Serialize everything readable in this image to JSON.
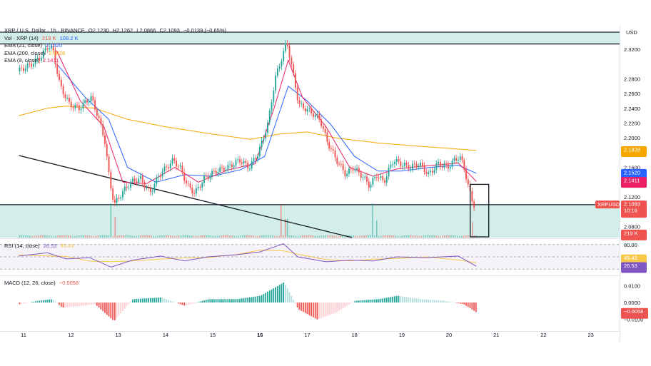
{
  "legend": {
    "symbol_line": "XRP / U.S. Dollar · 1h · BINANCE",
    "o_label": "O",
    "o": "2.1230",
    "h_label": "H",
    "h": "2.1262",
    "l_label": "L",
    "l": "2.0866",
    "c_label": "C",
    "c": "2.1093",
    "change": "−0.0139 (−0.65%)",
    "vol_label": "Vol · XRP (14)",
    "vol1": "219 K",
    "vol2": "108.2 K",
    "ema21_label": "EMA (21, close)",
    "ema21": "2.1520",
    "ema200_label": "EMA (200, close)",
    "ema200": "2.1828",
    "ema9_label": "EMA (9, close)",
    "ema9": "2.1411"
  },
  "rsi_legend": {
    "label": "RSI (14, close)",
    "v1": "26.53",
    "v2": "45.43"
  },
  "macd_legend": {
    "label": "MACD (12, 26, close)",
    "v": "−0.0058"
  },
  "colors": {
    "up": "#26a69a",
    "down": "#ef5350",
    "ema9": "#e91e63",
    "ema21": "#2962ff",
    "ema200": "#f7a600",
    "zone": "#d3ede8",
    "rsi_line": "#7e57c2",
    "rsi_ma": "#f7c948"
  },
  "chart_data": {
    "type": "candlestick",
    "price_axis": {
      "unit": "USD",
      "ticks": [
        "2.3200",
        "2.2800",
        "2.2600",
        "2.2400",
        "2.2200",
        "2.2000",
        "2.1600",
        "2.1200",
        "2.0800"
      ],
      "tick_values": [
        2.32,
        2.28,
        2.26,
        2.24,
        2.22,
        2.2,
        2.16,
        2.12,
        2.08
      ],
      "range": [
        2.065,
        2.345
      ]
    },
    "time_axis": {
      "ticks": [
        "11",
        "12",
        "13",
        "14",
        "15",
        "16",
        "17",
        "18",
        "19",
        "20",
        "21",
        "22",
        "23"
      ],
      "bold": [
        "16"
      ]
    },
    "price_labels": {
      "ema200": "2.1828",
      "ema21": "2.1520",
      "ema9": "2.1411",
      "symbol": "XRPUSD",
      "last": "2.1093",
      "countdown": "10:16",
      "volume": "219 K"
    },
    "zones": [
      {
        "from_price": 2.327,
        "to_price": 2.343
      },
      {
        "from_price": 2.065,
        "to_price": 2.1095
      }
    ],
    "trendline": {
      "from": {
        "day": 10.9,
        "price": 2.176
      },
      "to": {
        "day": 17.95,
        "price": 2.065
      }
    },
    "keypoints": [
      {
        "day": 10.9,
        "price": 2.29
      },
      {
        "day": 11.2,
        "price": 2.3
      },
      {
        "day": 11.4,
        "price": 2.31
      },
      {
        "day": 11.55,
        "price": 2.325
      },
      {
        "day": 11.65,
        "price": 2.318
      },
      {
        "day": 11.8,
        "price": 2.27
      },
      {
        "day": 12.0,
        "price": 2.245
      },
      {
        "day": 12.2,
        "price": 2.24
      },
      {
        "day": 12.45,
        "price": 2.255
      },
      {
        "day": 12.6,
        "price": 2.23
      },
      {
        "day": 12.75,
        "price": 2.195
      },
      {
        "day": 12.85,
        "price": 2.14
      },
      {
        "day": 12.95,
        "price": 2.11
      },
      {
        "day": 13.1,
        "price": 2.125
      },
      {
        "day": 13.3,
        "price": 2.14
      },
      {
        "day": 13.5,
        "price": 2.145
      },
      {
        "day": 13.7,
        "price": 2.125
      },
      {
        "day": 13.9,
        "price": 2.15
      },
      {
        "day": 14.05,
        "price": 2.16
      },
      {
        "day": 14.2,
        "price": 2.17
      },
      {
        "day": 14.35,
        "price": 2.158
      },
      {
        "day": 14.5,
        "price": 2.135
      },
      {
        "day": 14.65,
        "price": 2.125
      },
      {
        "day": 14.85,
        "price": 2.145
      },
      {
        "day": 15.1,
        "price": 2.155
      },
      {
        "day": 15.35,
        "price": 2.16
      },
      {
        "day": 15.6,
        "price": 2.17
      },
      {
        "day": 15.8,
        "price": 2.16
      },
      {
        "day": 16.0,
        "price": 2.18
      },
      {
        "day": 16.2,
        "price": 2.22
      },
      {
        "day": 16.35,
        "price": 2.28
      },
      {
        "day": 16.5,
        "price": 2.31
      },
      {
        "day": 16.6,
        "price": 2.33
      },
      {
        "day": 16.72,
        "price": 2.29
      },
      {
        "day": 16.85,
        "price": 2.245
      },
      {
        "day": 17.1,
        "price": 2.235
      },
      {
        "day": 17.3,
        "price": 2.225
      },
      {
        "day": 17.45,
        "price": 2.195
      },
      {
        "day": 17.65,
        "price": 2.17
      },
      {
        "day": 17.85,
        "price": 2.15
      },
      {
        "day": 18.0,
        "price": 2.16
      },
      {
        "day": 18.2,
        "price": 2.148
      },
      {
        "day": 18.35,
        "price": 2.135
      },
      {
        "day": 18.5,
        "price": 2.15
      },
      {
        "day": 18.65,
        "price": 2.14
      },
      {
        "day": 18.85,
        "price": 2.17
      },
      {
        "day": 19.0,
        "price": 2.165
      },
      {
        "day": 19.2,
        "price": 2.16
      },
      {
        "day": 19.4,
        "price": 2.165
      },
      {
        "day": 19.6,
        "price": 2.15
      },
      {
        "day": 19.8,
        "price": 2.165
      },
      {
        "day": 20.0,
        "price": 2.16
      },
      {
        "day": 20.15,
        "price": 2.17
      },
      {
        "day": 20.25,
        "price": 2.175
      },
      {
        "day": 20.35,
        "price": 2.16
      },
      {
        "day": 20.45,
        "price": 2.13
      },
      {
        "day": 20.55,
        "price": 2.109
      }
    ],
    "ema9_points": [
      {
        "day": 11.7,
        "price": 2.318
      },
      {
        "day": 12.2,
        "price": 2.25
      },
      {
        "day": 12.7,
        "price": 2.215
      },
      {
        "day": 13.1,
        "price": 2.14
      },
      {
        "day": 13.6,
        "price": 2.138
      },
      {
        "day": 14.2,
        "price": 2.16
      },
      {
        "day": 14.7,
        "price": 2.14
      },
      {
        "day": 15.3,
        "price": 2.156
      },
      {
        "day": 15.9,
        "price": 2.165
      },
      {
        "day": 16.3,
        "price": 2.24
      },
      {
        "day": 16.6,
        "price": 2.305
      },
      {
        "day": 16.9,
        "price": 2.255
      },
      {
        "day": 17.4,
        "price": 2.215
      },
      {
        "day": 17.9,
        "price": 2.16
      },
      {
        "day": 18.4,
        "price": 2.148
      },
      {
        "day": 18.9,
        "price": 2.158
      },
      {
        "day": 19.5,
        "price": 2.162
      },
      {
        "day": 20.2,
        "price": 2.166
      },
      {
        "day": 20.58,
        "price": 2.141
      }
    ],
    "ema21_points": [
      {
        "day": 11.7,
        "price": 2.3
      },
      {
        "day": 12.3,
        "price": 2.255
      },
      {
        "day": 12.8,
        "price": 2.225
      },
      {
        "day": 13.2,
        "price": 2.16
      },
      {
        "day": 13.8,
        "price": 2.14
      },
      {
        "day": 14.4,
        "price": 2.15
      },
      {
        "day": 15.0,
        "price": 2.148
      },
      {
        "day": 15.6,
        "price": 2.157
      },
      {
        "day": 16.1,
        "price": 2.175
      },
      {
        "day": 16.6,
        "price": 2.27
      },
      {
        "day": 17.0,
        "price": 2.25
      },
      {
        "day": 17.5,
        "price": 2.218
      },
      {
        "day": 18.0,
        "price": 2.175
      },
      {
        "day": 18.5,
        "price": 2.155
      },
      {
        "day": 19.0,
        "price": 2.155
      },
      {
        "day": 19.6,
        "price": 2.16
      },
      {
        "day": 20.2,
        "price": 2.163
      },
      {
        "day": 20.58,
        "price": 2.152
      }
    ],
    "ema200_points": [
      {
        "day": 10.9,
        "price": 2.23
      },
      {
        "day": 11.5,
        "price": 2.24
      },
      {
        "day": 11.9,
        "price": 2.243
      },
      {
        "day": 12.5,
        "price": 2.24
      },
      {
        "day": 13.2,
        "price": 2.225
      },
      {
        "day": 14.0,
        "price": 2.215
      },
      {
        "day": 15.0,
        "price": 2.205
      },
      {
        "day": 15.8,
        "price": 2.198
      },
      {
        "day": 16.4,
        "price": 2.205
      },
      {
        "day": 17.0,
        "price": 2.208
      },
      {
        "day": 17.6,
        "price": 2.2
      },
      {
        "day": 18.5,
        "price": 2.193
      },
      {
        "day": 19.5,
        "price": 2.188
      },
      {
        "day": 20.58,
        "price": 2.183
      }
    ],
    "volume_spikes": [
      {
        "day": 12.82,
        "value": 1.0
      },
      {
        "day": 12.92,
        "value": 0.6
      },
      {
        "day": 16.45,
        "value": 0.95
      },
      {
        "day": 16.55,
        "value": 0.55
      },
      {
        "day": 18.38,
        "value": 1.0
      },
      {
        "day": 18.45,
        "value": 0.5
      },
      {
        "day": 20.5,
        "value": 0.45
      }
    ],
    "rsi": {
      "levels": [
        "80.00"
      ],
      "level_values": [
        80,
        50,
        20
      ],
      "current": "26.53",
      "ma_current": "45.43",
      "points": [
        {
          "day": 10.9,
          "value": 52
        },
        {
          "day": 11.5,
          "value": 60
        },
        {
          "day": 11.9,
          "value": 45
        },
        {
          "day": 12.4,
          "value": 48
        },
        {
          "day": 12.85,
          "value": 25
        },
        {
          "day": 13.3,
          "value": 42
        },
        {
          "day": 13.9,
          "value": 52
        },
        {
          "day": 14.4,
          "value": 40
        },
        {
          "day": 14.9,
          "value": 50
        },
        {
          "day": 15.5,
          "value": 55
        },
        {
          "day": 16.0,
          "value": 62
        },
        {
          "day": 16.5,
          "value": 82
        },
        {
          "day": 16.8,
          "value": 50
        },
        {
          "day": 17.4,
          "value": 38
        },
        {
          "day": 17.9,
          "value": 42
        },
        {
          "day": 18.4,
          "value": 40
        },
        {
          "day": 18.9,
          "value": 50
        },
        {
          "day": 19.5,
          "value": 48
        },
        {
          "day": 20.2,
          "value": 52
        },
        {
          "day": 20.58,
          "value": 27
        }
      ]
    },
    "macd": {
      "ticks": [
        "0.0100",
        "0.0000",
        "−0.0100"
      ],
      "tick_values": [
        0.01,
        0,
        -0.01
      ],
      "current": "−0.0058",
      "hist_points": [
        {
          "day": 10.9,
          "value": -0.001
        },
        {
          "day": 11.3,
          "value": 0.001
        },
        {
          "day": 11.6,
          "value": 0.002
        },
        {
          "day": 11.8,
          "value": -0.003
        },
        {
          "day": 12.2,
          "value": -0.002
        },
        {
          "day": 12.5,
          "value": -0.001
        },
        {
          "day": 12.9,
          "value": -0.011
        },
        {
          "day": 13.3,
          "value": 0.002
        },
        {
          "day": 13.9,
          "value": 0.003
        },
        {
          "day": 14.4,
          "value": -0.002
        },
        {
          "day": 14.9,
          "value": 0.002
        },
        {
          "day": 15.5,
          "value": 0.002
        },
        {
          "day": 16.0,
          "value": 0.004
        },
        {
          "day": 16.5,
          "value": 0.012
        },
        {
          "day": 16.8,
          "value": -0.004
        },
        {
          "day": 17.2,
          "value": -0.01
        },
        {
          "day": 17.6,
          "value": -0.006
        },
        {
          "day": 18.0,
          "value": 0.001
        },
        {
          "day": 18.5,
          "value": 0.002
        },
        {
          "day": 18.9,
          "value": 0.004
        },
        {
          "day": 19.4,
          "value": 0.002
        },
        {
          "day": 19.9,
          "value": 0.001
        },
        {
          "day": 20.3,
          "value": -0.001
        },
        {
          "day": 20.58,
          "value": -0.006
        }
      ]
    }
  }
}
